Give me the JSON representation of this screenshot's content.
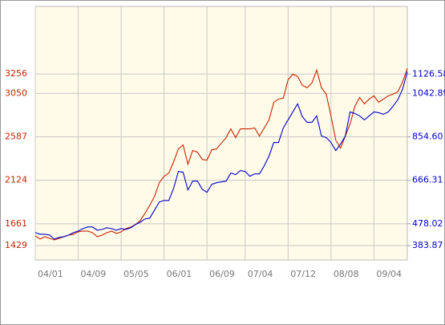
{
  "chart_data": {
    "type": "line",
    "categories": [
      "04/01",
      null,
      null,
      null,
      null,
      null,
      null,
      null,
      null,
      "04/09",
      null,
      null,
      null,
      null,
      null,
      null,
      null,
      null,
      "05/05",
      null,
      null,
      null,
      null,
      null,
      null,
      null,
      null,
      "06/01",
      null,
      null,
      null,
      null,
      null,
      null,
      null,
      null,
      "06/09",
      null,
      null,
      null,
      null,
      null,
      null,
      null,
      "07/04",
      null,
      null,
      null,
      null,
      null,
      null,
      null,
      null,
      "07/12",
      null,
      null,
      null,
      null,
      null,
      null,
      null,
      null,
      "08/08",
      null,
      null,
      null,
      null,
      null,
      null,
      null,
      null,
      "09/04",
      null,
      null,
      null,
      null,
      null,
      null,
      null
    ],
    "series": [
      {
        "color": "#cc2200",
        "axis": "y",
        "values": [
          1532,
          1498,
          1523,
          1506,
          1489,
          1506,
          1523,
          1540,
          1549,
          1575,
          1583,
          1583,
          1566,
          1523,
          1540,
          1566,
          1583,
          1558,
          1575,
          1609,
          1626,
          1652,
          1695,
          1772,
          1858,
          1952,
          2098,
          2167,
          2201,
          2321,
          2458,
          2501,
          2295,
          2441,
          2424,
          2346,
          2338,
          2449,
          2458,
          2518,
          2578,
          2672,
          2578,
          2672,
          2672,
          2672,
          2681,
          2595,
          2681,
          2767,
          2955,
          2989,
          2998,
          3195,
          3255,
          3230,
          3135,
          3110,
          3161,
          3298,
          3110,
          3041,
          2809,
          2552,
          2466,
          2595,
          2724,
          2912,
          3007,
          2938,
          2989,
          3024,
          2955,
          2989,
          3024,
          3041,
          3067,
          3170,
          3315
        ]
      },
      {
        "color": "#0000cc",
        "axis": "y2",
        "values": [
          439.7,
          432.7,
          432.7,
          429.2,
          411.8,
          418.7,
          422.2,
          429.2,
          439.7,
          446.6,
          457.1,
          464.1,
          464.1,
          450.1,
          453.6,
          460.6,
          457.1,
          450.1,
          457.1,
          453.6,
          460.6,
          474.5,
          485.0,
          498.9,
          502.4,
          537.3,
          572.2,
          579.1,
          579.1,
          631.4,
          704.7,
          701.2,
          624.5,
          662.8,
          662.8,
          628.0,
          614.0,
          648.9,
          655.9,
          659.3,
          662.8,
          697.7,
          690.7,
          708.2,
          704.7,
          683.8,
          694.2,
          694.2,
          729.1,
          770.9,
          830.2,
          830.2,
          893.0,
          927.9,
          962.7,
          997.6,
          941.8,
          917.4,
          917.4,
          945.3,
          858.1,
          851.1,
          830.2,
          795.3,
          823.2,
          858.1,
          962.7,
          955.7,
          945.3,
          927.9,
          945.3,
          962.7,
          959.2,
          952.2,
          962.7,
          987.1,
          1015.0,
          1060.3,
          1137.1
        ]
      }
    ],
    "ylim": [
      1275,
      3976
    ],
    "yticks": [
      1429,
      1661,
      2124,
      2587,
      3050,
      3256
    ],
    "y2lim": [
      321.1,
      1419.5
    ],
    "y2ticks": [
      383.87,
      478.02,
      666.31,
      {
        "value": 854.6,
        "label": "854.60"
      },
      1042.89,
      1126.58
    ],
    "grid": true
  }
}
